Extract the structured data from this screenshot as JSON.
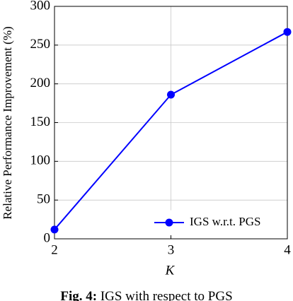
{
  "chart_data": {
    "type": "line",
    "x": [
      2,
      3,
      4
    ],
    "series": [
      {
        "name": "IGS w.r.t. PGS",
        "color": "#0000ff",
        "values": [
          12,
          186,
          267
        ]
      }
    ],
    "xlim": [
      2,
      4
    ],
    "xticks": [
      2,
      3,
      4
    ],
    "ylim": [
      0,
      300
    ],
    "yticks": [
      0,
      50,
      100,
      150,
      200,
      250,
      300
    ],
    "xlabel": "K",
    "ylabel": "Relative Performance Improvement (%)",
    "grid": true,
    "legend": "lower right",
    "caption": {
      "label": "Fig. 4:",
      "text": "IGS with respect to PGS"
    }
  }
}
